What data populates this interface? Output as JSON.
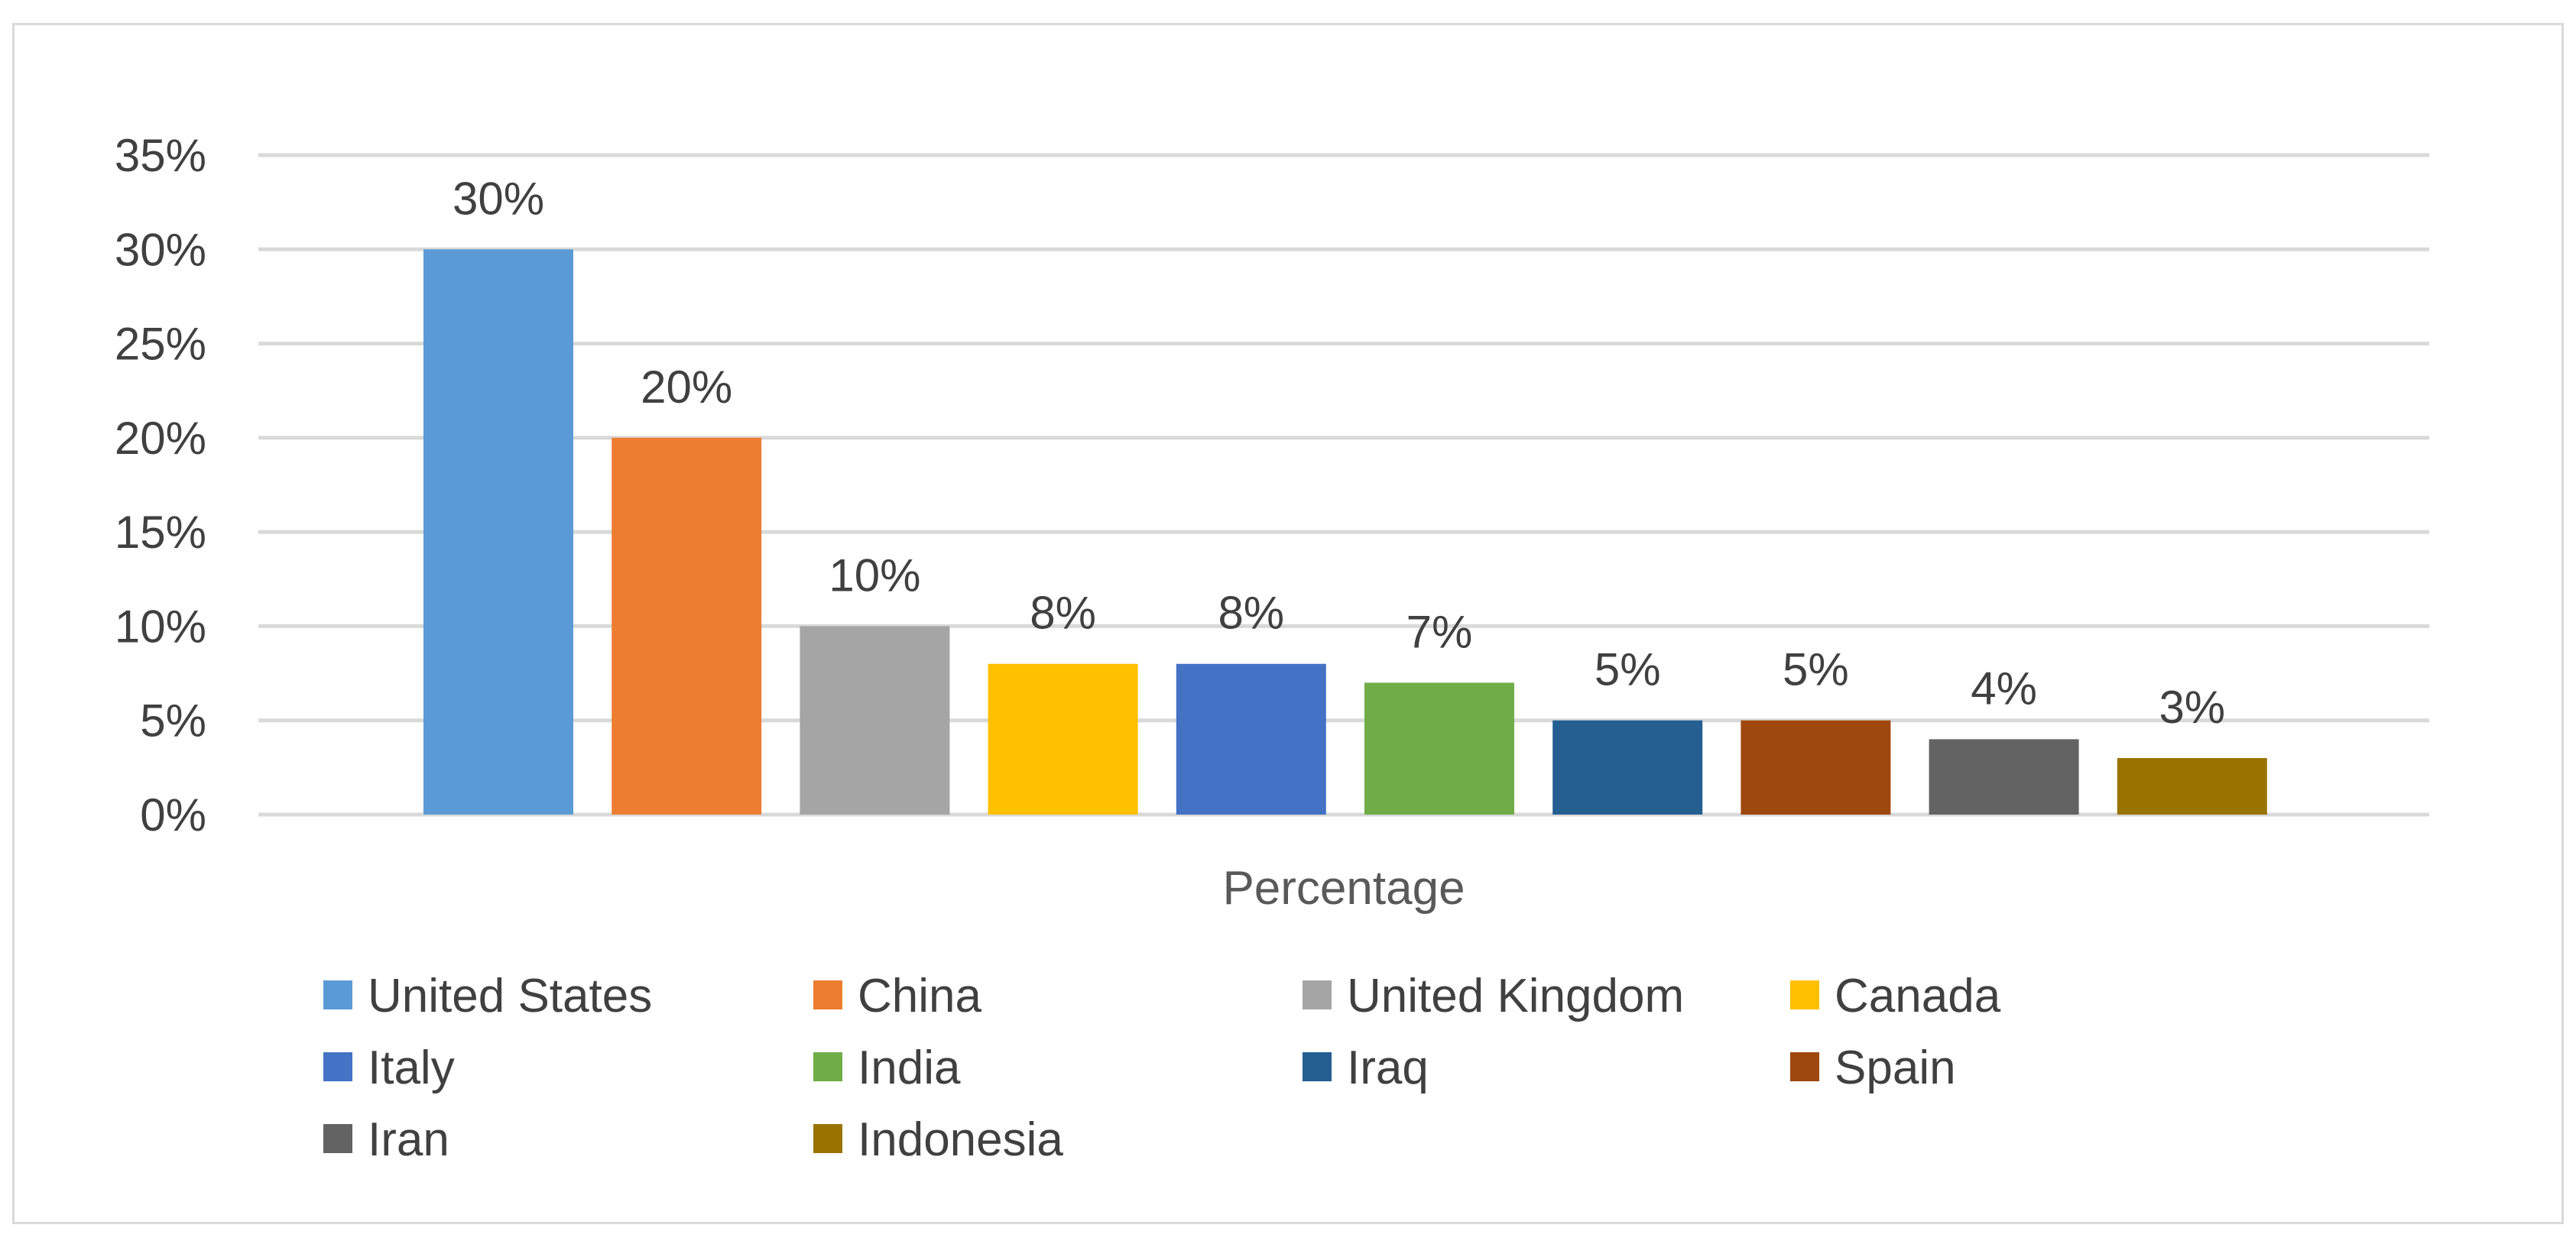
{
  "chart_data": {
    "type": "bar",
    "title": "",
    "xlabel": "Percentage",
    "ylabel": "",
    "categories": [
      "United States",
      "China",
      "United Kingdom",
      "Canada",
      "Italy",
      "India",
      "Iraq",
      "Spain",
      "Iran",
      "Indonesia"
    ],
    "values": [
      30,
      20,
      10,
      8,
      8,
      7,
      5,
      5,
      4,
      3
    ],
    "data_labels": [
      "30%",
      "20%",
      "10%",
      "8%",
      "8%",
      "7%",
      "5%",
      "5%",
      "4%",
      "3%"
    ],
    "colors": [
      "#5B9BD5",
      "#ED7D31",
      "#A5A5A5",
      "#FFC000",
      "#4472C4",
      "#70AD47",
      "#255E91",
      "#9E480E",
      "#636363",
      "#997300"
    ],
    "ylim": [
      0,
      35
    ],
    "yticks": [
      0,
      5,
      10,
      15,
      20,
      25,
      30,
      35
    ],
    "ytick_labels": [
      "0%",
      "5%",
      "10%",
      "15%",
      "20%",
      "25%",
      "30%",
      "35%"
    ],
    "grid": true,
    "legend_position": "bottom"
  }
}
